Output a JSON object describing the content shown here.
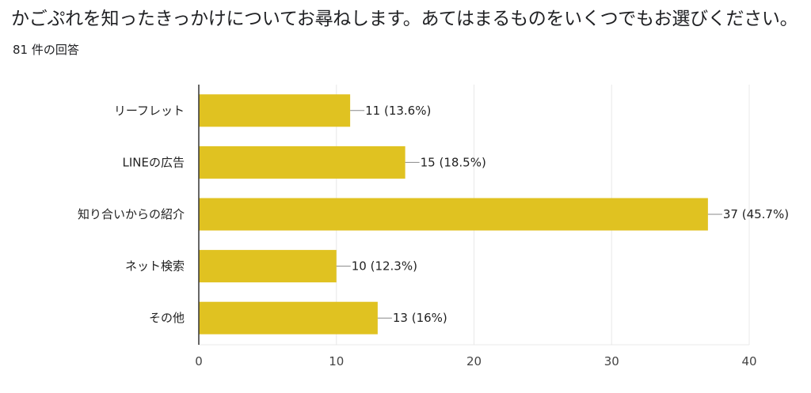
{
  "header": {
    "question": "かごぷれを知ったきっかけについてお尋ねします。あてはまるものをいくつでもお選びください。",
    "response_count": "81 件の回答"
  },
  "chart_data": {
    "type": "bar",
    "orientation": "horizontal",
    "categories": [
      "リーフレット",
      "LINEの広告",
      "知り合いからの紹介",
      "ネット検索",
      "その他"
    ],
    "values": [
      11,
      15,
      37,
      10,
      13
    ],
    "data_labels": [
      "11 (13.6%)",
      "15 (18.5%)",
      "37 (45.7%)",
      "10 (12.3%)",
      "13 (16%)"
    ],
    "xlim": [
      0,
      40
    ],
    "xticks": [
      0,
      10,
      20,
      30,
      40
    ],
    "grid": true,
    "bar_color": "#e0c221",
    "title": "",
    "xlabel": "",
    "ylabel": ""
  }
}
